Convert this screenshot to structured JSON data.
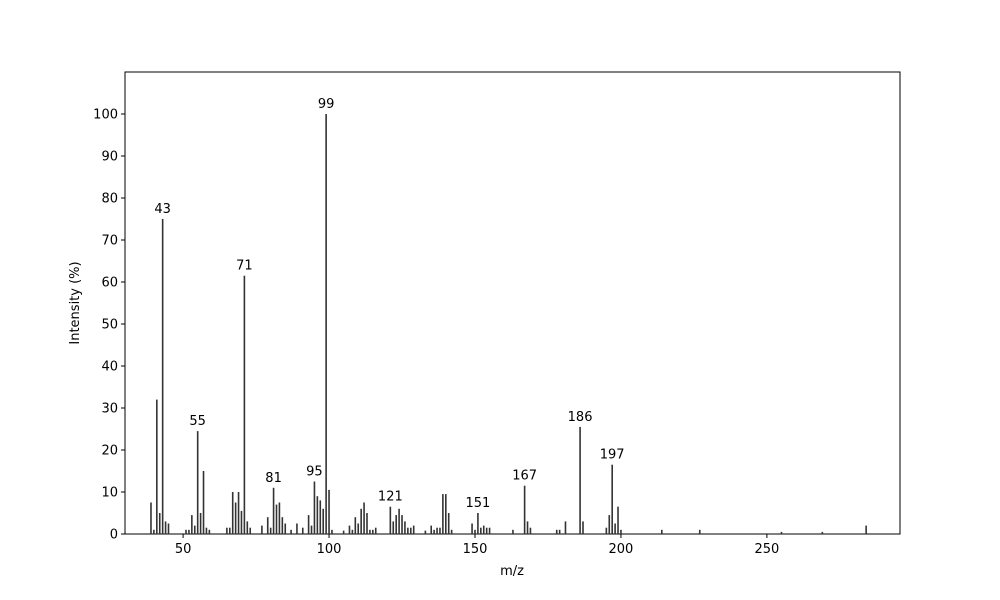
{
  "chart_data": {
    "type": "bar",
    "xlabel": "m/z",
    "ylabel": "Intensity (%)",
    "color": "#333333",
    "x": [
      39,
      40,
      41,
      42,
      43,
      44,
      45,
      51,
      52,
      53,
      54,
      55,
      56,
      57,
      58,
      59,
      65,
      66,
      67,
      68,
      69,
      70,
      71,
      72,
      73,
      77,
      79,
      80,
      81,
      82,
      83,
      84,
      85,
      87,
      89,
      91,
      93,
      94,
      95,
      96,
      97,
      98,
      99,
      100,
      101,
      105,
      107,
      108,
      109,
      110,
      111,
      112,
      113,
      114,
      115,
      116,
      121,
      122,
      123,
      124,
      125,
      126,
      127,
      128,
      129,
      133,
      135,
      136,
      137,
      138,
      139,
      140,
      141,
      142,
      149,
      150,
      151,
      152,
      153,
      154,
      155,
      163,
      167,
      168,
      169,
      178,
      179,
      181,
      186,
      187,
      195,
      196,
      197,
      198,
      199,
      200,
      214,
      227,
      255,
      269,
      284
    ],
    "values": [
      7.5,
      1,
      32,
      5,
      75,
      3,
      2.5,
      1,
      1,
      4.5,
      2,
      24.5,
      5,
      15,
      1.5,
      1,
      1.5,
      1.5,
      10,
      7.5,
      10,
      5.5,
      61.5,
      3,
      1.5,
      2,
      4,
      1.5,
      11,
      7,
      7.5,
      4,
      2.5,
      1,
      2.5,
      1.5,
      4.5,
      2,
      12.5,
      9,
      8,
      6,
      100,
      10.5,
      1,
      0.8,
      2,
      1,
      4,
      2.5,
      6,
      7.5,
      5,
      1,
      1,
      1.5,
      6.5,
      3,
      4.5,
      6,
      4.5,
      3,
      1.5,
      1.5,
      2,
      0.8,
      2,
      1,
      1.5,
      1.5,
      9.5,
      9.5,
      5,
      1,
      2.5,
      1,
      5,
      1.5,
      2,
      1.5,
      1.5,
      1,
      11.5,
      3,
      1.5,
      1,
      1,
      3,
      25.5,
      3,
      1.5,
      4.5,
      16.5,
      2.5,
      6.5,
      1,
      1,
      1,
      0.5,
      0.5,
      2
    ],
    "annotations": [
      43,
      55,
      71,
      81,
      95,
      99,
      121,
      151,
      167,
      186,
      197
    ],
    "xlim": [
      30.1,
      295.6
    ],
    "ylim": [
      0,
      110
    ],
    "xticks": [
      50,
      100,
      150,
      200,
      250
    ],
    "yticks": [
      0,
      10,
      20,
      30,
      40,
      50,
      60,
      70,
      80,
      90,
      100
    ]
  }
}
